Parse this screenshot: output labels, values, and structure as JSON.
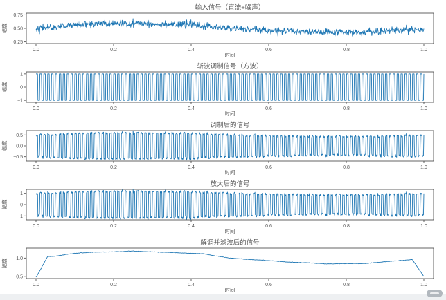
{
  "page": {
    "background_color": "#eef0f2",
    "figure_background_color": "#ffffff"
  },
  "colors": {
    "line": "#1f77b4",
    "text": "#595959",
    "spine": "#3d3d3d",
    "tick": "#555555"
  },
  "watermark_badge": {
    "present": true,
    "color": "#b2b8be"
  },
  "chart_data": [
    {
      "type": "line",
      "title": "输入信号（直流+噪声）",
      "xlabel": "时间",
      "ylabel": "幅度",
      "xlim": [
        -0.025,
        1.025
      ],
      "ylim": [
        0.22,
        0.78
      ],
      "xticks": {
        "values": [
          0.0,
          0.2,
          0.4,
          0.6,
          0.8,
          1.0
        ],
        "labels": [
          "0.0",
          "0.2",
          "0.4",
          "0.6",
          "0.8",
          "1.0"
        ]
      },
      "yticks": {
        "values": [
          0.25,
          0.5,
          0.75
        ],
        "labels": [
          "0.25",
          "0.50",
          "0.75"
        ]
      },
      "grid": false,
      "legend": null,
      "signal": {
        "gen": "trend_noise",
        "n_points": 1000,
        "x_range": [
          0,
          1
        ],
        "noise_sigma": 0.032,
        "seed": 42,
        "trend_keypoints": [
          [
            0,
            0.5
          ],
          [
            0.05,
            0.52
          ],
          [
            0.1,
            0.565
          ],
          [
            0.15,
            0.575
          ],
          [
            0.2,
            0.585
          ],
          [
            0.25,
            0.595
          ],
          [
            0.3,
            0.585
          ],
          [
            0.35,
            0.575
          ],
          [
            0.4,
            0.565
          ],
          [
            0.45,
            0.53
          ],
          [
            0.5,
            0.5
          ],
          [
            0.55,
            0.48
          ],
          [
            0.6,
            0.46
          ],
          [
            0.65,
            0.44
          ],
          [
            0.7,
            0.43
          ],
          [
            0.75,
            0.42
          ],
          [
            0.8,
            0.425
          ],
          [
            0.85,
            0.43
          ],
          [
            0.9,
            0.45
          ],
          [
            0.95,
            0.475
          ],
          [
            1.0,
            0.47
          ]
        ]
      }
    },
    {
      "type": "line",
      "title": "斩波调制信号（方波）",
      "xlabel": "时间",
      "ylabel": "幅度",
      "xlim": [
        -0.025,
        1.025
      ],
      "ylim": [
        -1.15,
        1.15
      ],
      "xticks": {
        "values": [
          0.0,
          0.2,
          0.4,
          0.6,
          0.8,
          1.0
        ],
        "labels": [
          "0.0",
          "0.2",
          "0.4",
          "0.6",
          "0.8",
          "1.0"
        ]
      },
      "yticks": {
        "values": [
          -1,
          0,
          1
        ],
        "labels": [
          "−1",
          "0",
          "1"
        ]
      },
      "grid": false,
      "legend": null,
      "signal": {
        "gen": "square_wave",
        "n_points": 1000,
        "x_range": [
          0,
          1
        ],
        "frequency_hz": 100,
        "levels": [
          -1,
          1
        ]
      }
    },
    {
      "type": "line",
      "title": "调制后的信号",
      "xlabel": "时间",
      "ylabel": "幅度",
      "xlim": [
        -0.025,
        1.025
      ],
      "ylim": [
        -0.7,
        0.7
      ],
      "xticks": {
        "values": [
          0.0,
          0.2,
          0.4,
          0.6,
          0.8,
          1.0
        ],
        "labels": [
          "0.0",
          "0.2",
          "0.4",
          "0.6",
          "0.8",
          "1.0"
        ]
      },
      "yticks": {
        "values": [
          -0.5,
          0.0,
          0.5
        ],
        "labels": [
          "−0.5",
          "0.0",
          "0.5"
        ]
      },
      "grid": false,
      "legend": null,
      "signal": {
        "gen": "product",
        "sources": [
          0,
          1
        ]
      }
    },
    {
      "type": "line",
      "title": "放大后的信号",
      "xlabel": "时间",
      "ylabel": "幅度",
      "xlim": [
        -0.025,
        1.025
      ],
      "ylim": [
        -1.35,
        1.35
      ],
      "xticks": {
        "values": [
          0.0,
          0.2,
          0.4,
          0.6,
          0.8,
          1.0
        ],
        "labels": [
          "0.0",
          "0.2",
          "0.4",
          "0.6",
          "0.8",
          "1.0"
        ]
      },
      "yticks": {
        "values": [
          -1,
          0,
          1
        ],
        "labels": [
          "−1",
          "0",
          "1"
        ]
      },
      "grid": false,
      "legend": null,
      "signal": {
        "gen": "scale",
        "source": 2,
        "gain": 2
      }
    },
    {
      "type": "line",
      "title": "解调并滤波后的信号",
      "xlabel": "时间",
      "ylabel": "幅度",
      "xlim": [
        -0.025,
        1.025
      ],
      "ylim": [
        0.44,
        1.27
      ],
      "xticks": {
        "values": [
          0.0,
          0.2,
          0.4,
          0.6,
          0.8,
          1.0
        ],
        "labels": [
          "0.0",
          "0.2",
          "0.4",
          "0.6",
          "0.8",
          "1.0"
        ]
      },
      "yticks": {
        "values": [
          0.5,
          1.0
        ],
        "labels": [
          "0.5",
          "1.0"
        ]
      },
      "grid": false,
      "legend": null,
      "signal": {
        "gen": "trend_noise",
        "n_points": 600,
        "x_range": [
          0,
          1
        ],
        "noise_sigma": 0.0035,
        "seed": 7,
        "trend_keypoints": [
          [
            0,
            0.47
          ],
          [
            0.03,
            1.04
          ],
          [
            0.05,
            1.05
          ],
          [
            0.08,
            1.1
          ],
          [
            0.1,
            1.13
          ],
          [
            0.15,
            1.16
          ],
          [
            0.2,
            1.17
          ],
          [
            0.25,
            1.19
          ],
          [
            0.3,
            1.17
          ],
          [
            0.35,
            1.15
          ],
          [
            0.4,
            1.13
          ],
          [
            0.43,
            1.12
          ],
          [
            0.45,
            1.08
          ],
          [
            0.5,
            1.0
          ],
          [
            0.55,
            0.96
          ],
          [
            0.6,
            0.93
          ],
          [
            0.65,
            0.89
          ],
          [
            0.7,
            0.87
          ],
          [
            0.75,
            0.84
          ],
          [
            0.8,
            0.85
          ],
          [
            0.85,
            0.85
          ],
          [
            0.9,
            0.9
          ],
          [
            0.95,
            0.94
          ],
          [
            0.97,
            0.96
          ],
          [
            1.0,
            0.5
          ]
        ]
      }
    }
  ]
}
